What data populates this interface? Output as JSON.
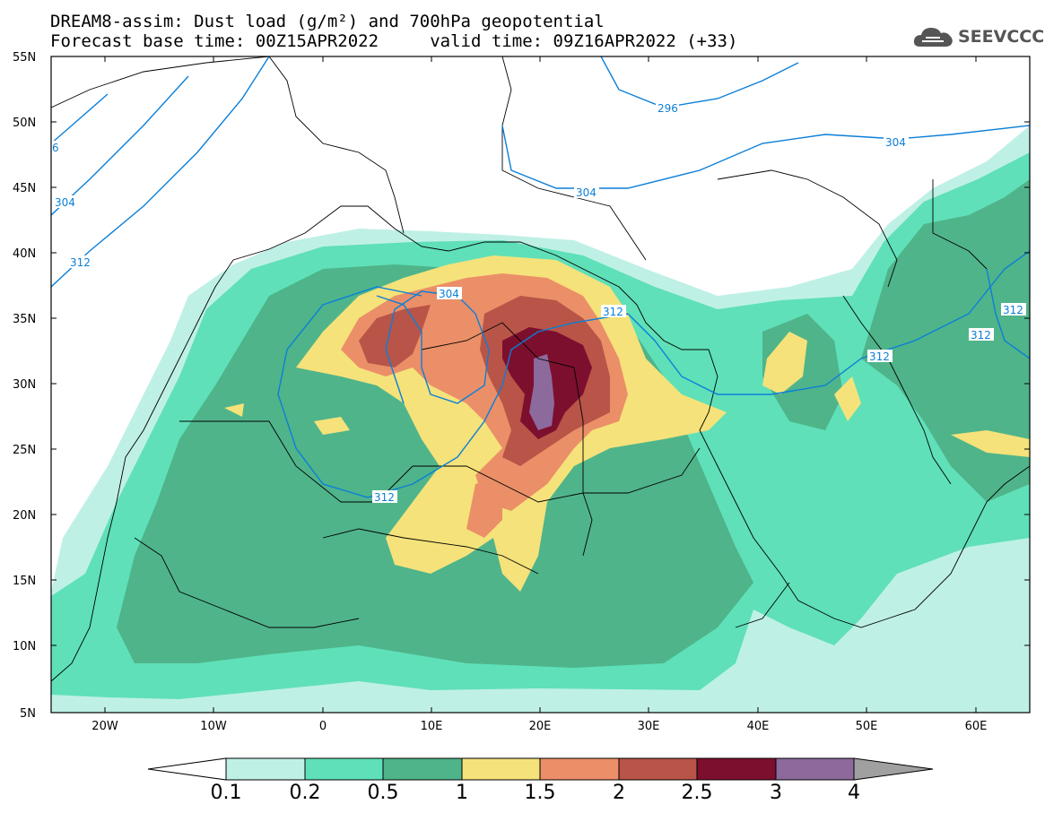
{
  "title": {
    "line1": "DREAM8-assim: Dust load (g/m²) and 700hPa geopotential",
    "line2": "Forecast base time: 00Z15APR2022     valid time: 09Z16APR2022 (+33)"
  },
  "logo": {
    "text": "SEEVCCC",
    "icon": "cloud-logo-icon"
  },
  "axes": {
    "lat_labels": [
      "55N",
      "50N",
      "45N",
      "40N",
      "35N",
      "30N",
      "25N",
      "20N",
      "15N",
      "10N",
      "5N"
    ],
    "lon_labels": [
      "20W",
      "10W",
      "0",
      "10E",
      "20E",
      "30E",
      "40E",
      "50E",
      "60E"
    ]
  },
  "contours": [
    {
      "value": "296",
      "label": "296"
    },
    {
      "value": "304",
      "label": "304"
    },
    {
      "value": "304",
      "label": "304"
    },
    {
      "value": "304",
      "label": "304"
    },
    {
      "value": "312",
      "label": "312"
    },
    {
      "value": "312",
      "label": "312"
    },
    {
      "value": "312",
      "label": "312"
    },
    {
      "value": "312",
      "label": "312"
    },
    {
      "value": "312",
      "label": "312"
    },
    {
      "value": "6",
      "label": "6"
    }
  ],
  "colorbar": {
    "labels": [
      "0.1",
      "0.2",
      "0.5",
      "1",
      "1.5",
      "2",
      "2.5",
      "3",
      "4"
    ],
    "colors": [
      "#ffffff",
      "#bff0e6",
      "#5fe0b8",
      "#4fb48a",
      "#f5e27a",
      "#eb8f68",
      "#b85548",
      "#7d0f2e",
      "#8c6a9c",
      "#a0a0a0"
    ]
  },
  "colors": {
    "level1": "#bff0e6",
    "level2": "#5fe0b8",
    "level3": "#4fb48a",
    "level4": "#f5e27a",
    "level5": "#eb8f68",
    "level6": "#b85548",
    "level7": "#7d0f2e",
    "level8": "#8c6a9c",
    "contour": "#0b7fd8"
  }
}
